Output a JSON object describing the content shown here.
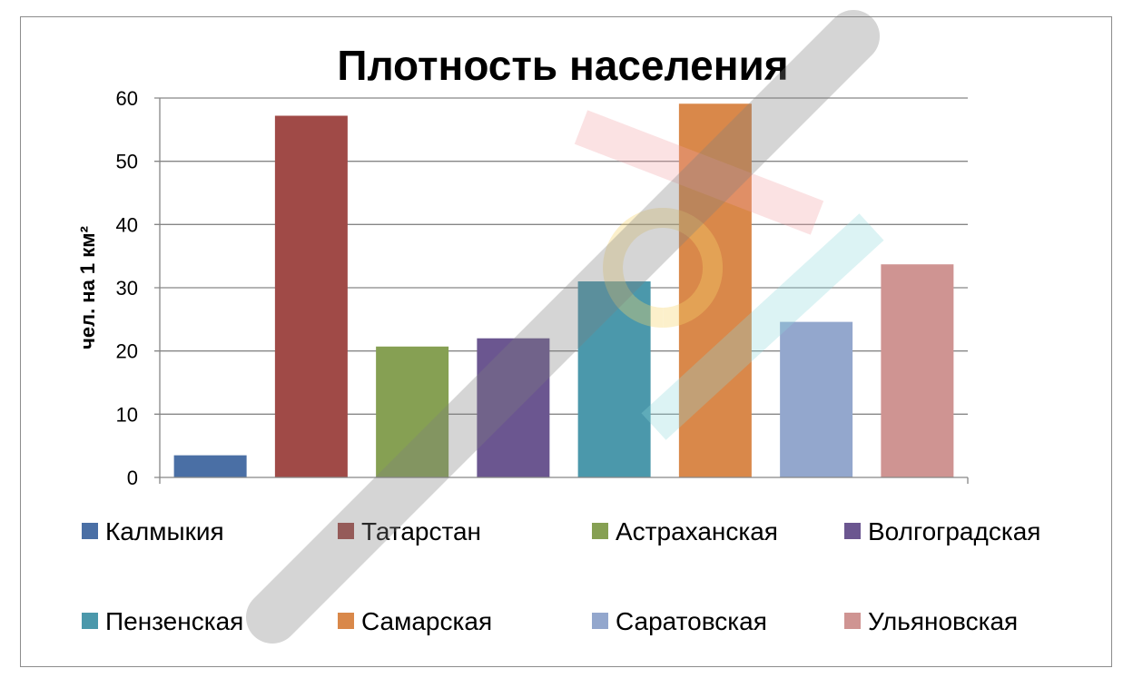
{
  "chart_data": {
    "type": "bar",
    "title": "Плотность населения",
    "xlabel": "",
    "ylabel": "чел. на 1 км²",
    "ylim": [
      0,
      60
    ],
    "yticks": [
      "0",
      "10",
      "20",
      "30",
      "40",
      "50",
      "60"
    ],
    "grid": true,
    "legend_position": "bottom",
    "series": [
      {
        "name": "Калмыкия",
        "value": 3.5,
        "color": "#4a6fa5"
      },
      {
        "name": "Татарстан",
        "value": 57.2,
        "color": "#a04a47"
      },
      {
        "name": "Астраханская",
        "value": 20.7,
        "color": "#86a053"
      },
      {
        "name": "Волгоградская",
        "value": 22.0,
        "color": "#6b5690"
      },
      {
        "name": "Пензенская",
        "value": 31.0,
        "color": "#4b98ab"
      },
      {
        "name": "Самарская",
        "value": 59.1,
        "color": "#d9884a"
      },
      {
        "name": "Саратовская",
        "value": 24.6,
        "color": "#93a7cd"
      },
      {
        "name": "Ульяновская",
        "value": 33.7,
        "color": "#cf9492"
      }
    ]
  }
}
